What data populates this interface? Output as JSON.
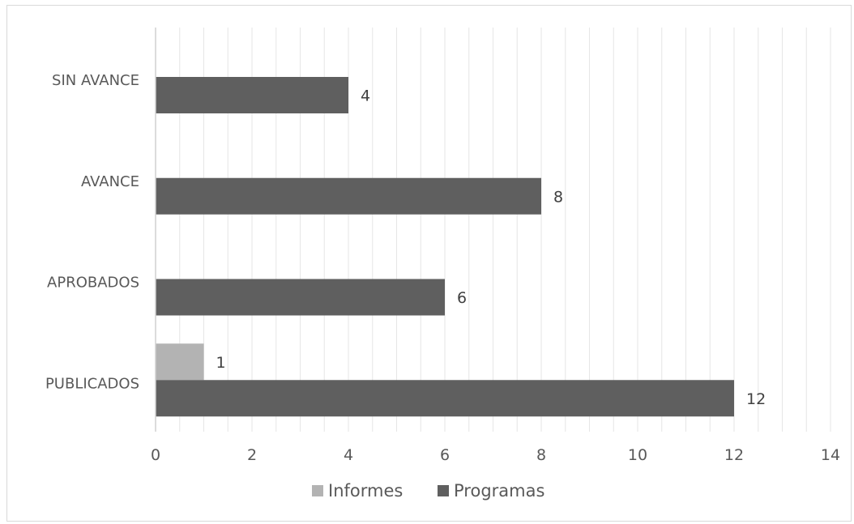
{
  "chart_data": {
    "type": "bar",
    "orientation": "horizontal",
    "categories": [
      "SIN AVANCE",
      "AVANCE",
      "APROBADOS",
      "PUBLICADOS"
    ],
    "series": [
      {
        "name": "Informes",
        "color": "#b3b3b3",
        "values": [
          null,
          null,
          null,
          1
        ]
      },
      {
        "name": "Programas",
        "color": "#5f5f5f",
        "values": [
          4,
          8,
          6,
          12
        ]
      }
    ],
    "xlim": [
      0,
      14
    ],
    "xticks": [
      0,
      2,
      4,
      6,
      8,
      10,
      12,
      14
    ],
    "grid": true,
    "legend": "bottom",
    "data_labels": true
  }
}
